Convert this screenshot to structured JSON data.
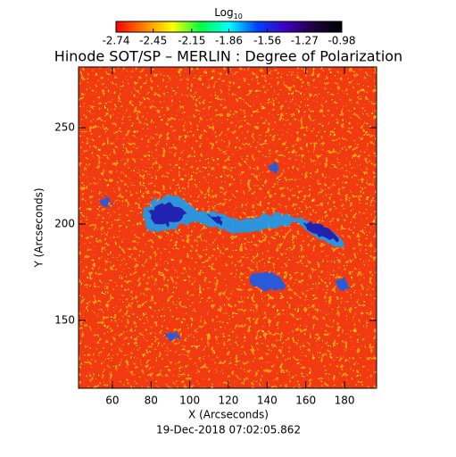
{
  "chart_data": {
    "type": "image",
    "title": "Hinode SOT/SP – MERLIN : Degree of Polarization",
    "colorbar": {
      "label": "Log",
      "label_subscript": "10",
      "clim": [
        -2.74,
        -0.98
      ],
      "ticks": [
        -2.74,
        -2.45,
        -2.15,
        -1.86,
        -1.56,
        -1.27,
        -0.98
      ],
      "colors": [
        "#ff0000",
        "#ff8000",
        "#ffff00",
        "#00ff40",
        "#00ffff",
        "#0040ff",
        "#4000c0",
        "#200040",
        "#000000"
      ]
    },
    "x_label": "X (Arcseconds)",
    "y_label": "Y (Arcseconds)",
    "xlim": [
      42.5,
      196.6
    ],
    "xticks": [
      60,
      80,
      100,
      120,
      140,
      160,
      180
    ],
    "ylim": [
      114.8,
      281.5
    ],
    "yticks": [
      150,
      200,
      250
    ],
    "annotation": "19-Dec-2018 07:02:05.862"
  }
}
